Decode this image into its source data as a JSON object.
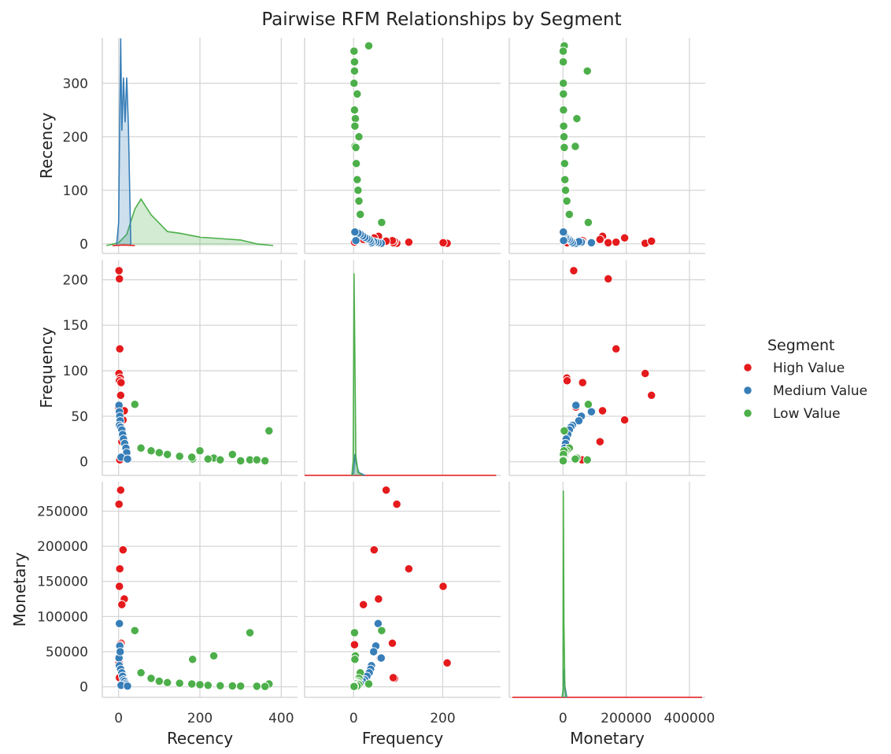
{
  "chart_data": {
    "type": "scatter",
    "subtype": "pairplot",
    "title": "Pairwise RFM Relationships by Segment",
    "variables": [
      "Recency",
      "Frequency",
      "Monetary"
    ],
    "ticks": {
      "Recency": {
        "values": [
          0,
          100,
          200,
          300,
          400
        ],
        "labels": [
          "0",
          "100",
          "200",
          "300",
          "400"
        ]
      },
      "Frequency": {
        "values": [
          0,
          50,
          100,
          150,
          200
        ],
        "labels": [
          "0",
          "50",
          "100",
          "150",
          "200"
        ]
      },
      "Monetary": {
        "values": [
          0,
          50000,
          100000,
          150000,
          200000,
          250000,
          300000,
          400000
        ],
        "labels": [
          "0",
          "50000",
          "100000",
          "150000",
          "200000",
          "250000",
          "",
          "400000"
        ]
      }
    },
    "x_tick_rows": {
      "Recency": [
        "0",
        "200",
        "400"
      ],
      "Frequency": [
        "0",
        "200"
      ],
      "Monetary": [
        "0",
        "200000",
        "400000"
      ]
    },
    "y_tick_rows": {
      "Recency": [
        "0",
        "100",
        "200",
        "300"
      ],
      "Frequency": [
        "0",
        "50",
        "100",
        "150",
        "200"
      ],
      "Monetary": [
        "0",
        "50000",
        "100000",
        "150000",
        "200000",
        "250000"
      ]
    },
    "axis_ranges": {
      "Recency": [
        -40,
        440
      ],
      "Frequency": [
        -110,
        330
      ],
      "Monetary": [
        -170000,
        450000
      ]
    },
    "y_ranges": {
      "Recency": [
        -18,
        385
      ],
      "Frequency": [
        -15,
        222
      ],
      "Monetary": [
        -15000,
        292000
      ]
    },
    "legend": {
      "title": "Segment",
      "position": "right",
      "entries": [
        "High Value",
        "Medium Value",
        "Low Value"
      ]
    },
    "grid": true,
    "colors": {
      "High Value": "#e41a1c",
      "Medium Value": "#377eb8",
      "Low Value": "#4daf4a"
    },
    "series": [
      {
        "name": "High Value",
        "points": [
          {
            "Recency": 1,
            "Frequency": 210,
            "Monetary": 34000
          },
          {
            "Recency": 2,
            "Frequency": 201,
            "Monetary": 143000
          },
          {
            "Recency": 3,
            "Frequency": 124,
            "Monetary": 168000
          },
          {
            "Recency": 1,
            "Frequency": 97,
            "Monetary": 260000
          },
          {
            "Recency": 4,
            "Frequency": 92,
            "Monetary": 12000
          },
          {
            "Recency": 2,
            "Frequency": 89,
            "Monetary": 13000
          },
          {
            "Recency": 6,
            "Frequency": 87,
            "Monetary": 62000
          },
          {
            "Recency": 5,
            "Frequency": 73,
            "Monetary": 280000
          },
          {
            "Recency": 0,
            "Frequency": 60,
            "Monetary": 41000
          },
          {
            "Recency": 14,
            "Frequency": 56,
            "Monetary": 125000
          },
          {
            "Recency": 11,
            "Frequency": 46,
            "Monetary": 195000
          },
          {
            "Recency": 8,
            "Frequency": 22,
            "Monetary": 117000
          },
          {
            "Recency": 3,
            "Frequency": 2,
            "Monetary": 60000
          }
        ]
      },
      {
        "name": "Medium Value",
        "points": [
          {
            "Recency": 1,
            "Frequency": 62,
            "Monetary": 41000
          },
          {
            "Recency": 2,
            "Frequency": 55,
            "Monetary": 90000
          },
          {
            "Recency": 3,
            "Frequency": 50,
            "Monetary": 58000
          },
          {
            "Recency": 4,
            "Frequency": 45,
            "Monetary": 50000
          },
          {
            "Recency": 2,
            "Frequency": 40,
            "Monetary": 30000
          },
          {
            "Recency": 5,
            "Frequency": 38,
            "Monetary": 25000
          },
          {
            "Recency": 8,
            "Frequency": 35,
            "Monetary": 20000
          },
          {
            "Recency": 10,
            "Frequency": 30,
            "Monetary": 15000
          },
          {
            "Recency": 12,
            "Frequency": 25,
            "Monetary": 10000
          },
          {
            "Recency": 15,
            "Frequency": 20,
            "Monetary": 8000
          },
          {
            "Recency": 18,
            "Frequency": 15,
            "Monetary": 5000
          },
          {
            "Recency": 20,
            "Frequency": 10,
            "Monetary": 3000
          },
          {
            "Recency": 6,
            "Frequency": 5,
            "Monetary": 2000
          },
          {
            "Recency": 22,
            "Frequency": 3,
            "Monetary": 1000
          }
        ]
      },
      {
        "name": "Low Value",
        "points": [
          {
            "Recency": 370,
            "Frequency": 34,
            "Monetary": 4000
          },
          {
            "Recency": 40,
            "Frequency": 63,
            "Monetary": 80000
          },
          {
            "Recency": 323,
            "Frequency": 2,
            "Monetary": 77000
          },
          {
            "Recency": 234,
            "Frequency": 4,
            "Monetary": 44000
          },
          {
            "Recency": 182,
            "Frequency": 3,
            "Monetary": 39000
          },
          {
            "Recency": 55,
            "Frequency": 15,
            "Monetary": 20000
          },
          {
            "Recency": 80,
            "Frequency": 12,
            "Monetary": 12000
          },
          {
            "Recency": 100,
            "Frequency": 10,
            "Monetary": 8000
          },
          {
            "Recency": 120,
            "Frequency": 8,
            "Monetary": 6000
          },
          {
            "Recency": 150,
            "Frequency": 6,
            "Monetary": 5000
          },
          {
            "Recency": 180,
            "Frequency": 5,
            "Monetary": 4000
          },
          {
            "Recency": 200,
            "Frequency": 12,
            "Monetary": 3000
          },
          {
            "Recency": 220,
            "Frequency": 3,
            "Monetary": 2000
          },
          {
            "Recency": 250,
            "Frequency": 2,
            "Monetary": 1500
          },
          {
            "Recency": 280,
            "Frequency": 8,
            "Monetary": 1200
          },
          {
            "Recency": 300,
            "Frequency": 1,
            "Monetary": 1000
          },
          {
            "Recency": 340,
            "Frequency": 2,
            "Monetary": 800
          },
          {
            "Recency": 360,
            "Frequency": 1,
            "Monetary": 500
          }
        ]
      }
    ],
    "diagonal_kde": {
      "Recency": {
        "High Value": [
          [
            -15,
            0
          ],
          [
            0,
            0.4
          ],
          [
            10,
            1
          ],
          [
            25,
            0.5
          ],
          [
            40,
            0
          ]
        ],
        "Medium Value": [
          [
            -5,
            0
          ],
          [
            0,
            40
          ],
          [
            5,
            370
          ],
          [
            8,
            205
          ],
          [
            12,
            300
          ],
          [
            16,
            220
          ],
          [
            20,
            300
          ],
          [
            24,
            215
          ],
          [
            30,
            0
          ]
        ],
        "Low Value": [
          [
            -30,
            0
          ],
          [
            0,
            5
          ],
          [
            20,
            20
          ],
          [
            40,
            65
          ],
          [
            55,
            83
          ],
          [
            80,
            55
          ],
          [
            120,
            25
          ],
          [
            150,
            22
          ],
          [
            200,
            15
          ],
          [
            260,
            12
          ],
          [
            300,
            10
          ],
          [
            340,
            3
          ],
          [
            380,
            0
          ]
        ]
      },
      "Frequency": {
        "Low Value": [
          [
            -4,
            0
          ],
          [
            -1,
            15
          ],
          [
            1,
            208
          ],
          [
            3,
            120
          ],
          [
            5,
            20
          ],
          [
            10,
            3
          ],
          [
            20,
            0
          ]
        ],
        "Medium Value": [
          [
            -4,
            0
          ],
          [
            0,
            3
          ],
          [
            3,
            22
          ],
          [
            6,
            12
          ],
          [
            12,
            3
          ],
          [
            25,
            0
          ]
        ],
        "High Value": [
          [
            -110,
            0
          ],
          [
            320,
            0
          ]
        ]
      },
      "Monetary": {
        "Low Value": [
          [
            -3000,
            0
          ],
          [
            0,
            10
          ],
          [
            1000,
            280
          ],
          [
            3000,
            100
          ],
          [
            6000,
            10
          ],
          [
            10000,
            0
          ]
        ],
        "Medium Value": [
          [
            -3000,
            0
          ],
          [
            1000,
            10
          ],
          [
            3000,
            38
          ],
          [
            6000,
            15
          ],
          [
            12000,
            0
          ]
        ],
        "High Value": [
          [
            -160000,
            0
          ],
          [
            440000,
            0
          ]
        ]
      }
    }
  }
}
